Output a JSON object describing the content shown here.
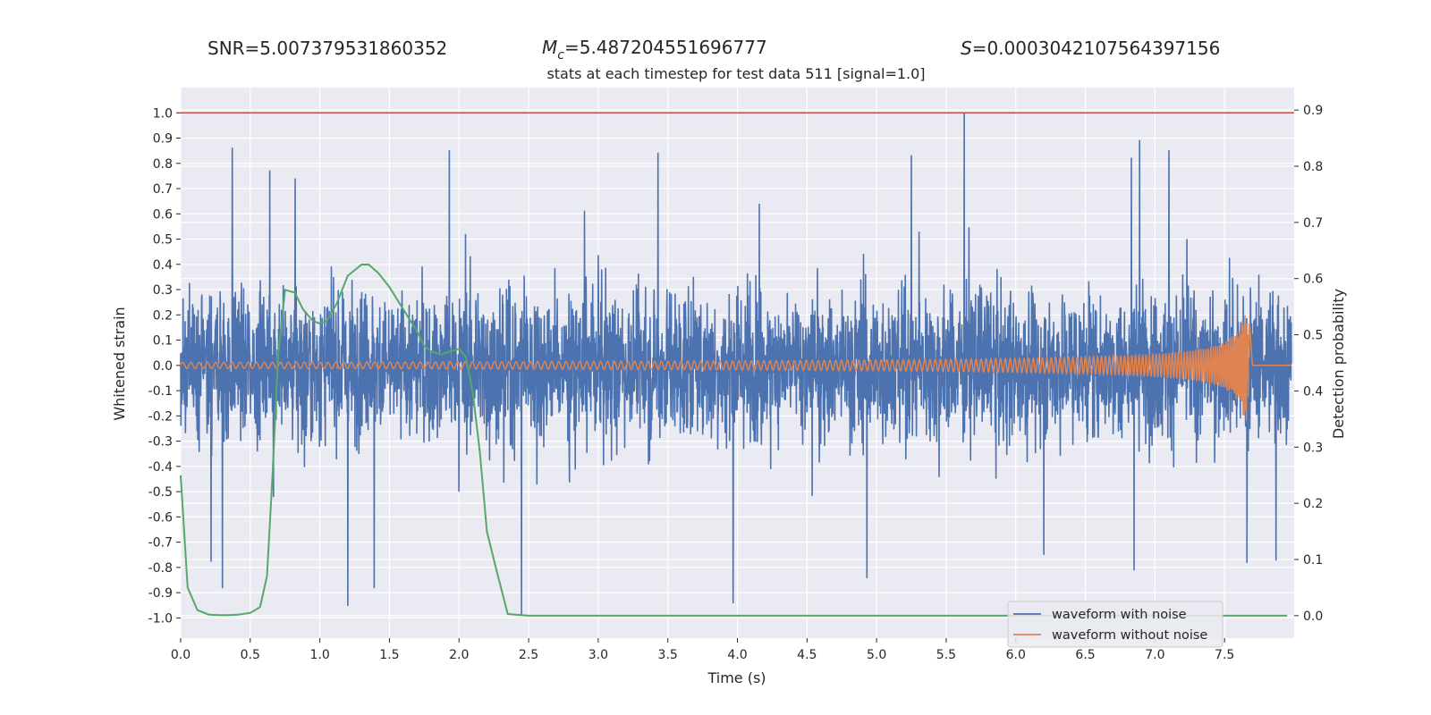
{
  "stats": {
    "snr": "SNR=5.007379531860352",
    "mc_sym": "M",
    "mc_sub": "c",
    "mc_val": "=5.487204551696777",
    "s_sym": "S",
    "s_val": "=0.0003042107564397156"
  },
  "chart_data": {
    "type": "line",
    "title": "stats at each timestep for test data 511 [signal=1.0]",
    "xlabel": "Time (s)",
    "ylabel": "Whitened strain",
    "y2label": "Detection probability",
    "xlim": [
      0.0,
      8.0
    ],
    "ylim": [
      -1.08,
      1.1
    ],
    "y2lim": [
      -0.04,
      0.94
    ],
    "x_ticks": [
      "0.0",
      "0.5",
      "1.0",
      "1.5",
      "2.0",
      "2.5",
      "3.0",
      "3.5",
      "4.0",
      "4.5",
      "5.0",
      "5.5",
      "6.0",
      "6.5",
      "7.0",
      "7.5"
    ],
    "y_ticks": [
      "1.0",
      "0.9",
      "0.8",
      "0.7",
      "0.6",
      "0.5",
      "0.4",
      "0.3",
      "0.2",
      "0.1",
      "0.0",
      "-0.1",
      "-0.2",
      "-0.3",
      "-0.4",
      "-0.5",
      "-0.6",
      "-0.7",
      "-0.8",
      "-0.9",
      "-1.0"
    ],
    "y2_ticks": [
      "0.9",
      "0.8",
      "0.7",
      "0.6",
      "0.5",
      "0.4",
      "0.3",
      "0.2",
      "0.1",
      "0.0"
    ],
    "threshold": 1.0,
    "grid": true,
    "legend_position": "lower-right",
    "colors": {
      "noise": "#4c72b0",
      "clean": "#dd8452",
      "prob": "#55a868",
      "threshold": "#c44e52",
      "background": "#eaeaf2"
    },
    "series": [
      {
        "name": "waveform with noise",
        "axis": "left",
        "peaks": [
          {
            "x": 0.37,
            "y": 0.86
          },
          {
            "x": 0.64,
            "y": 0.77
          },
          {
            "x": 1.93,
            "y": 0.85
          },
          {
            "x": 3.43,
            "y": 0.84
          },
          {
            "x": 5.25,
            "y": 0.83
          },
          {
            "x": 5.63,
            "y": 1.0
          },
          {
            "x": 6.83,
            "y": 0.82
          },
          {
            "x": 6.89,
            "y": 0.89
          },
          {
            "x": 7.1,
            "y": 0.85
          },
          {
            "x": 0.3,
            "y": -0.88
          },
          {
            "x": 1.2,
            "y": -0.95
          },
          {
            "x": 1.39,
            "y": -0.88
          },
          {
            "x": 2.45,
            "y": -0.99
          },
          {
            "x": 3.97,
            "y": -0.94
          },
          {
            "x": 4.93,
            "y": -0.84
          },
          {
            "x": 6.85,
            "y": -0.81
          },
          {
            "x": 7.66,
            "y": -0.78
          },
          {
            "x": 7.87,
            "y": -0.77
          }
        ]
      },
      {
        "name": "waveform without noise",
        "axis": "left",
        "chirp": {
          "start": 0.0,
          "end": 7.68,
          "amplitude_start": 0.012,
          "amplitude_peak": 0.22
        }
      },
      {
        "name": "",
        "axis": "right",
        "x": [
          0.0,
          0.05,
          0.12,
          0.2,
          0.27,
          0.35,
          0.42,
          0.5,
          0.57,
          0.62,
          0.66,
          0.7,
          0.75,
          0.82,
          0.88,
          0.95,
          1.0,
          1.05,
          1.12,
          1.2,
          1.3,
          1.35,
          1.42,
          1.5,
          1.6,
          1.7,
          1.75,
          1.8,
          1.87,
          1.93,
          2.0,
          2.05,
          2.1,
          2.15,
          2.2,
          2.27,
          2.35,
          2.5,
          3.0,
          4.0,
          5.0,
          6.0,
          7.0,
          7.95
        ],
        "y": [
          0.25,
          0.05,
          0.01,
          0.002,
          0.001,
          0.001,
          0.002,
          0.005,
          0.015,
          0.07,
          0.25,
          0.46,
          0.58,
          0.575,
          0.545,
          0.525,
          0.52,
          0.525,
          0.555,
          0.605,
          0.625,
          0.625,
          0.61,
          0.585,
          0.545,
          0.505,
          0.48,
          0.47,
          0.465,
          0.47,
          0.475,
          0.46,
          0.395,
          0.29,
          0.15,
          0.08,
          0.003,
          0.0,
          0.0,
          0.0,
          0.0,
          0.0,
          0.0,
          0.0
        ]
      }
    ]
  }
}
